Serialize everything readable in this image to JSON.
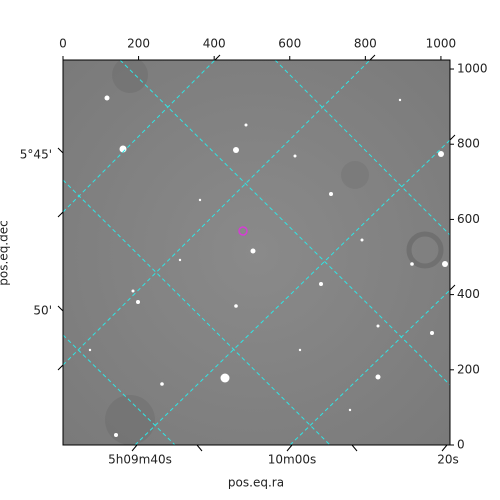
{
  "chart_data": {
    "type": "image",
    "xlim": [
      0,
      1024
    ],
    "xticks": [
      0,
      200,
      400,
      600,
      800,
      1000
    ],
    "ylim": [
      0,
      1024
    ],
    "yticks": [
      0,
      200,
      400,
      600,
      800,
      1000
    ],
    "ra_tick_labels": [
      "5h09m40s",
      "10m00s",
      "20s"
    ],
    "dec_tick_labels": [
      "5°45'",
      "50'"
    ],
    "xlabel": "pos.eq.ra",
    "ylabel": "pos.eq.dec"
  }
}
